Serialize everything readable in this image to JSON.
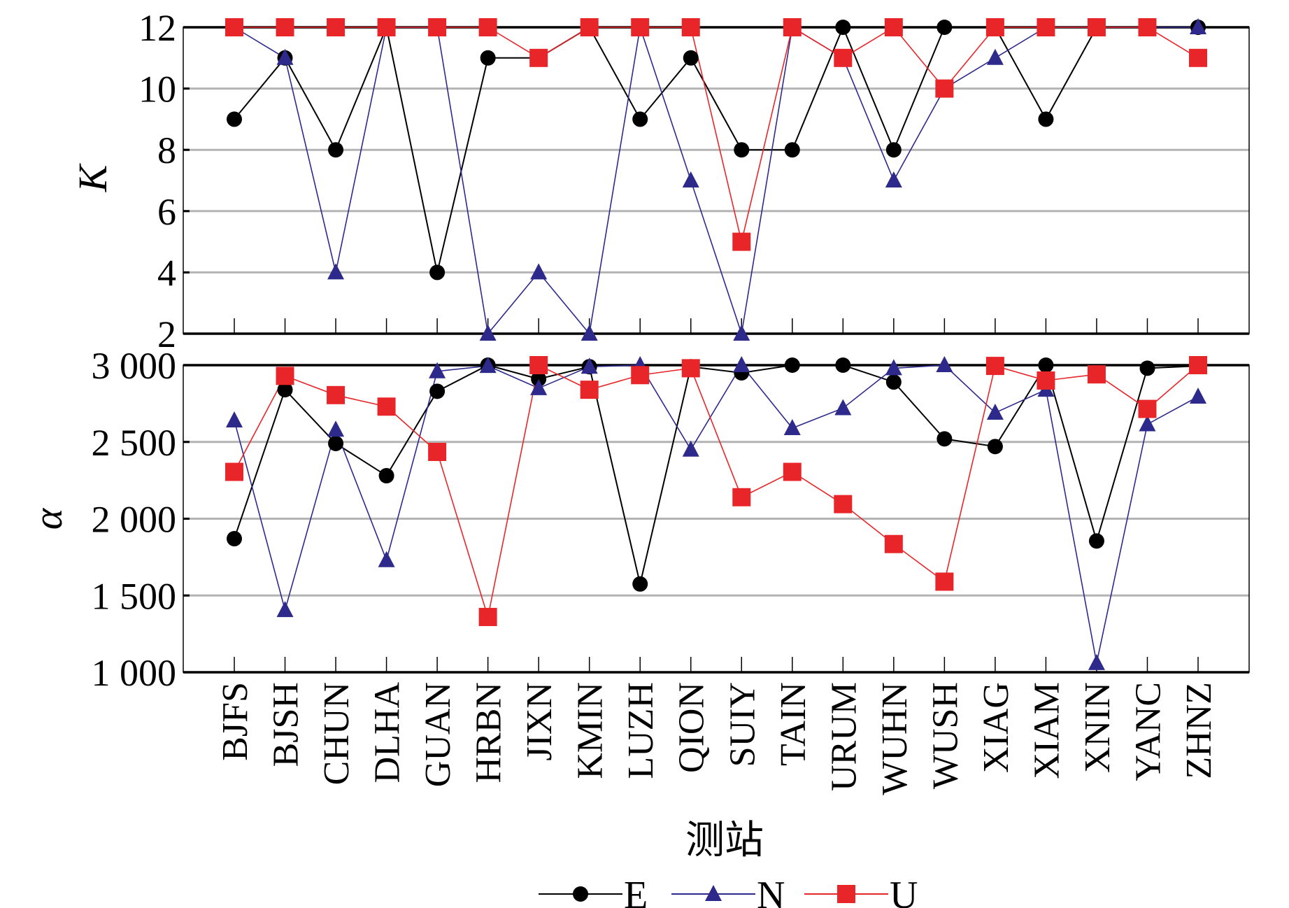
{
  "chart_data": [
    {
      "type": "line",
      "panel": "top",
      "ylabel": "K",
      "ylim": [
        2,
        12
      ],
      "yticks": [
        "2",
        "4",
        "6",
        "8",
        "10",
        "12"
      ],
      "grid": true,
      "categories": [
        "BJFS",
        "BJSH",
        "CHUN",
        "DLHA",
        "GUAN",
        "HRBN",
        "JIXN",
        "KMIN",
        "LUZH",
        "QION",
        "SUIY",
        "TAIN",
        "URUM",
        "WUHN",
        "WUSH",
        "XIAG",
        "XIAM",
        "XNIN",
        "YANC",
        "ZHNZ"
      ],
      "series": [
        {
          "name": "E",
          "color": "#000000",
          "marker": "circle",
          "values": [
            9,
            11,
            8,
            12,
            4,
            11,
            11,
            12,
            9,
            11,
            8,
            8,
            12,
            8,
            12,
            12,
            9,
            12,
            12,
            12
          ]
        },
        {
          "name": "N",
          "color": "#2e2a8c",
          "marker": "triangle",
          "values": [
            12,
            11,
            4,
            12,
            12,
            2,
            4,
            2,
            12,
            7,
            2,
            12,
            11,
            7,
            10,
            11,
            12,
            12,
            12,
            12
          ]
        },
        {
          "name": "U",
          "color": "#e8262a",
          "marker": "square",
          "values": [
            12,
            12,
            12,
            12,
            12,
            12,
            11,
            12,
            12,
            12,
            5,
            12,
            11,
            12,
            10,
            12,
            12,
            12,
            12,
            11
          ]
        }
      ]
    },
    {
      "type": "line",
      "panel": "bottom",
      "ylabel": "α",
      "xlabel": "测站",
      "ylim": [
        1000,
        3000
      ],
      "yticks": [
        "1 000",
        "1 500",
        "2 000",
        "2 500",
        "3 000"
      ],
      "grid": true,
      "legend": "bottom",
      "categories": [
        "BJFS",
        "BJSH",
        "CHUN",
        "DLHA",
        "GUAN",
        "HRBN",
        "JIXN",
        "KMIN",
        "LUZH",
        "QION",
        "SUIY",
        "TAIN",
        "URUM",
        "WUHN",
        "WUSH",
        "XIAG",
        "XIAM",
        "XNIN",
        "YANC",
        "ZHNZ"
      ],
      "series": [
        {
          "name": "E",
          "color": "#000000",
          "marker": "circle",
          "values": [
            1870,
            2840,
            2490,
            2280,
            2830,
            3000,
            2910,
            2990,
            1575,
            2990,
            2950,
            3000,
            3000,
            2890,
            2520,
            2470,
            3000,
            1855,
            2980,
            2995
          ]
        },
        {
          "name": "N",
          "color": "#2e2a8c",
          "marker": "triangle",
          "values": [
            2640,
            1405,
            2580,
            1730,
            2960,
            2995,
            2850,
            2990,
            3000,
            2450,
            3000,
            2590,
            2720,
            2980,
            3000,
            2690,
            2840,
            1060,
            2615,
            2795
          ]
        },
        {
          "name": "U",
          "color": "#e8262a",
          "marker": "square",
          "values": [
            2305,
            2930,
            2805,
            2730,
            2435,
            1360,
            3000,
            2840,
            2935,
            2980,
            2140,
            2305,
            2095,
            1835,
            1590,
            2995,
            2900,
            2940,
            2715,
            3000
          ]
        }
      ]
    }
  ]
}
